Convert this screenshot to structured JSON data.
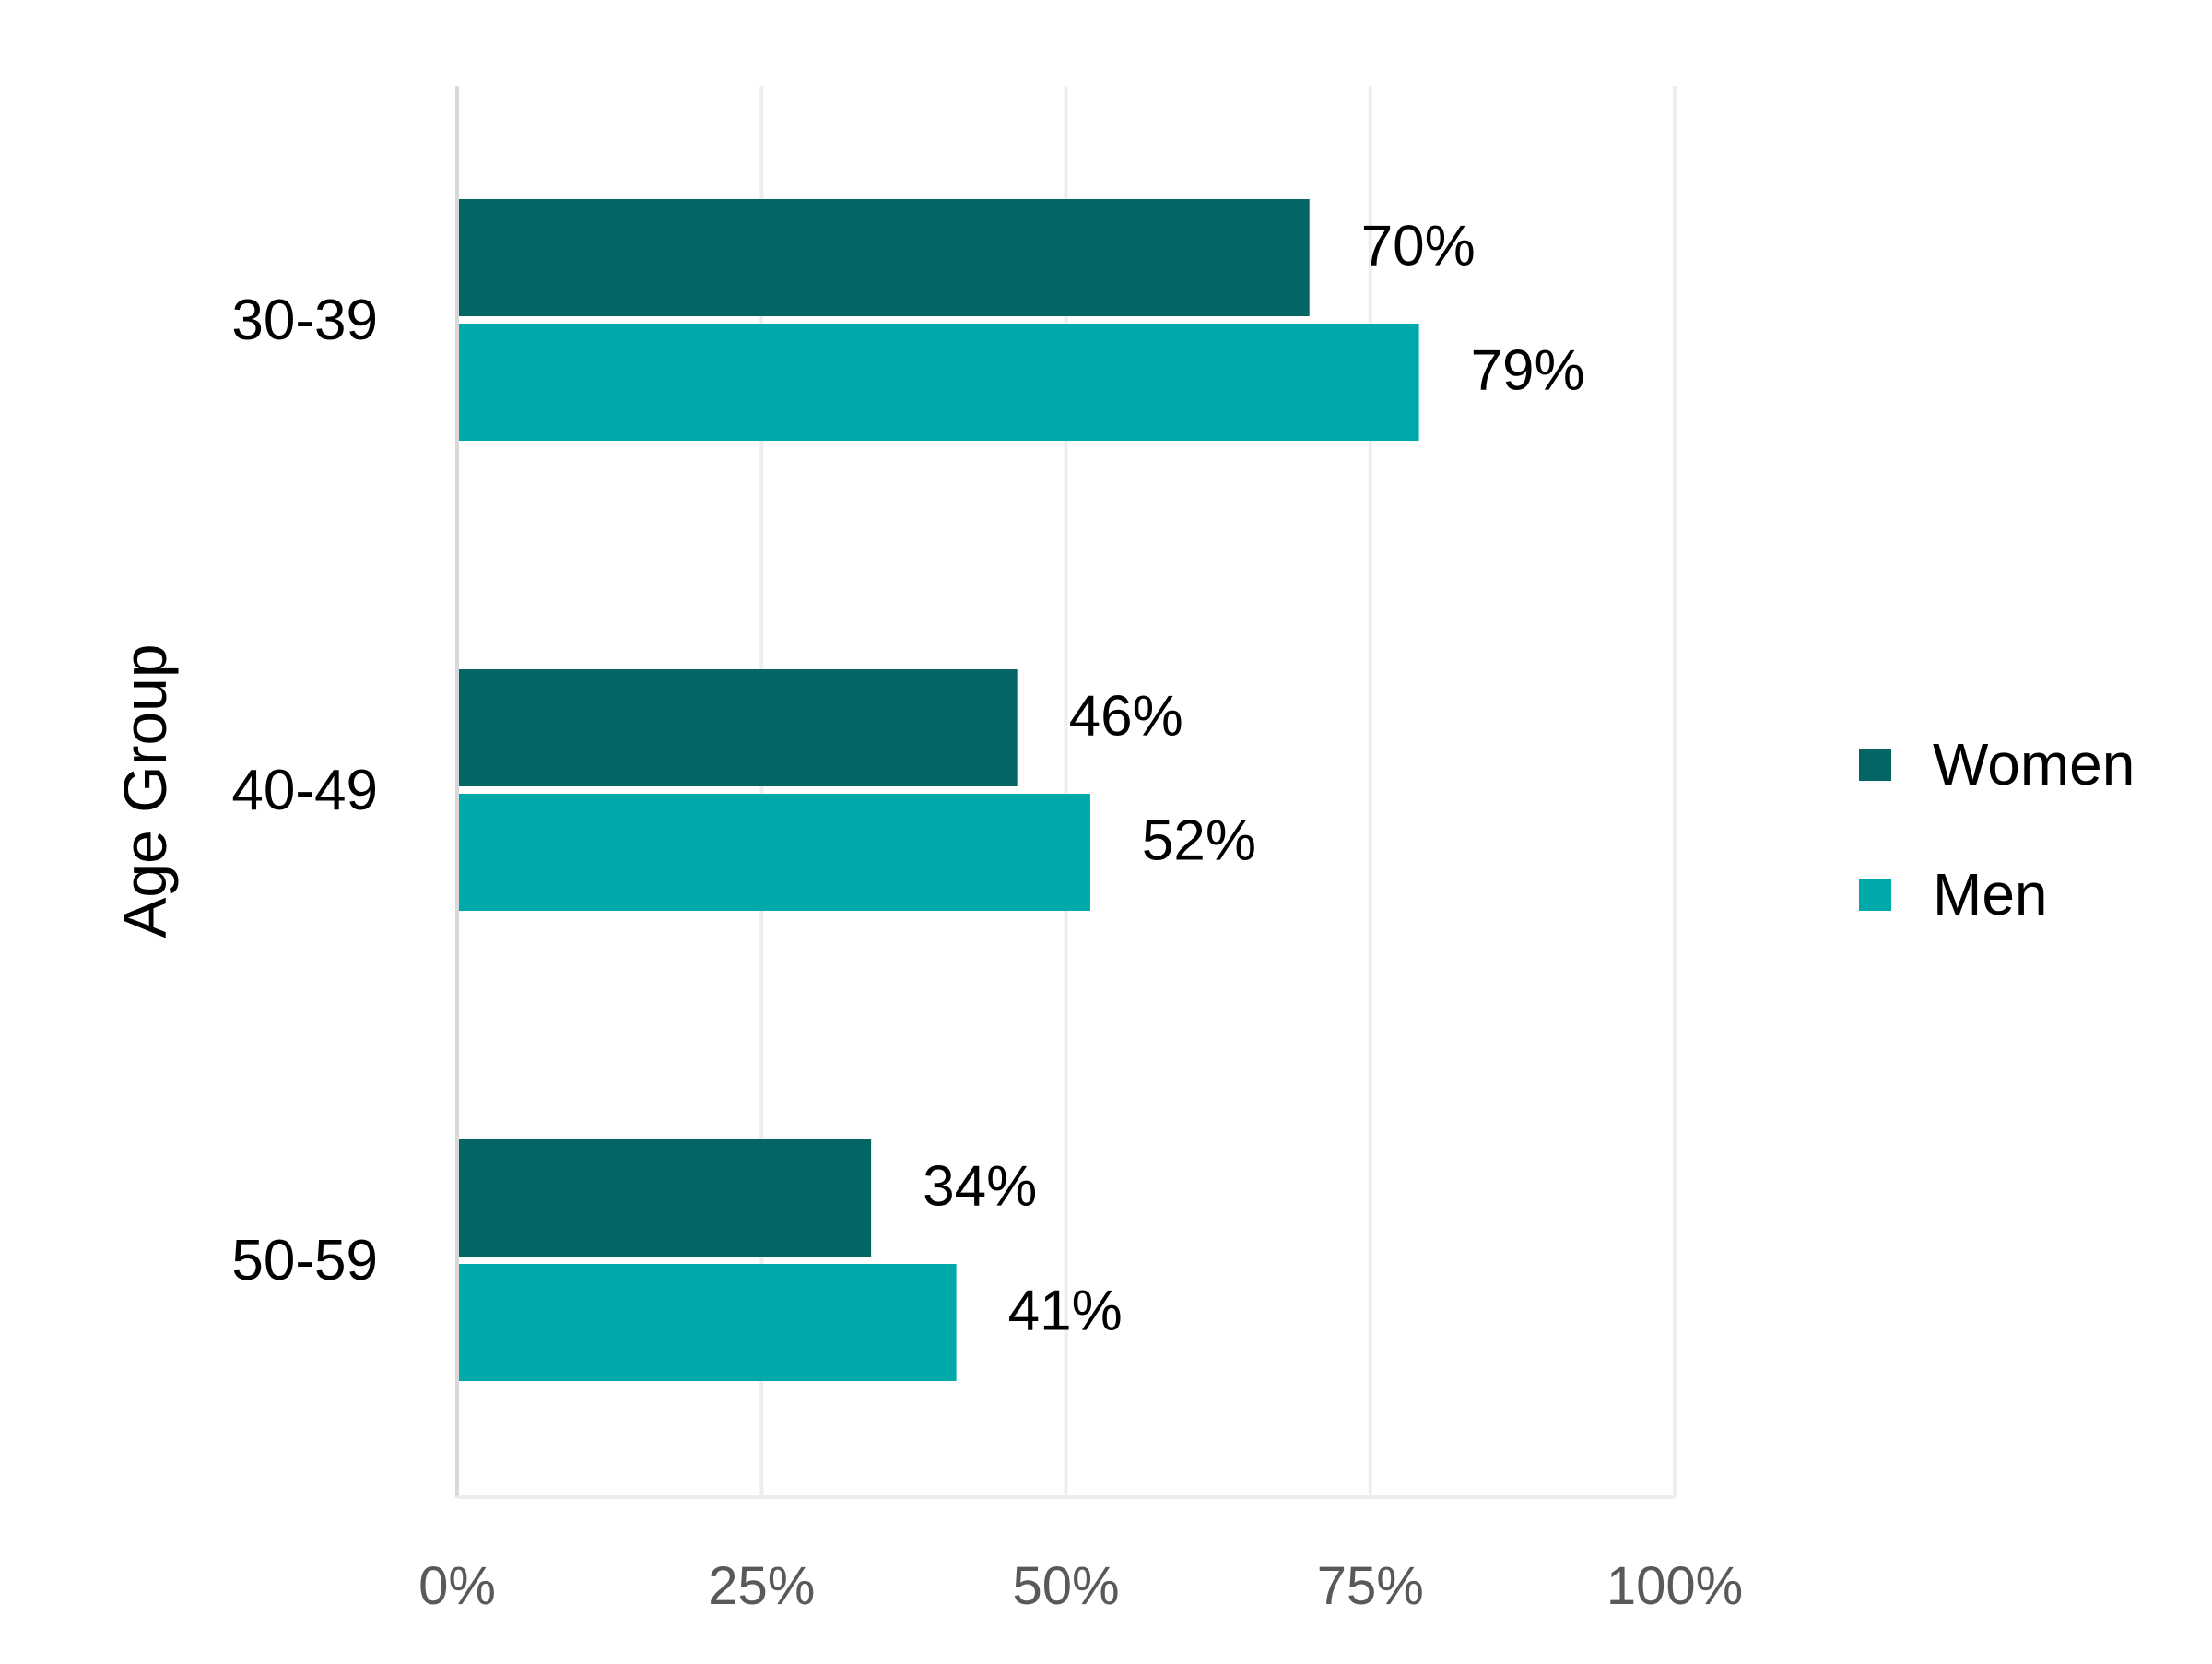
{
  "chart_data": {
    "type": "bar",
    "orientation": "horizontal",
    "title": "",
    "xlabel": "",
    "ylabel": "Age Group",
    "categories": [
      "30-39",
      "40-49",
      "50-59"
    ],
    "series": [
      {
        "name": "Women",
        "color": "#036564",
        "values": [
          70,
          46,
          34
        ],
        "labels": [
          "70%",
          "46%",
          "34%"
        ]
      },
      {
        "name": "Men",
        "color": "#00A9A9",
        "values": [
          79,
          52,
          41
        ],
        "labels": [
          "79%",
          "52%",
          "41%"
        ]
      }
    ],
    "xlim": [
      0,
      100
    ],
    "xticks": [
      0,
      25,
      50,
      75,
      100
    ],
    "xtick_labels": [
      "0%",
      "25%",
      "50%",
      "75%",
      "100%"
    ],
    "grid": true,
    "legend_position": "right"
  }
}
